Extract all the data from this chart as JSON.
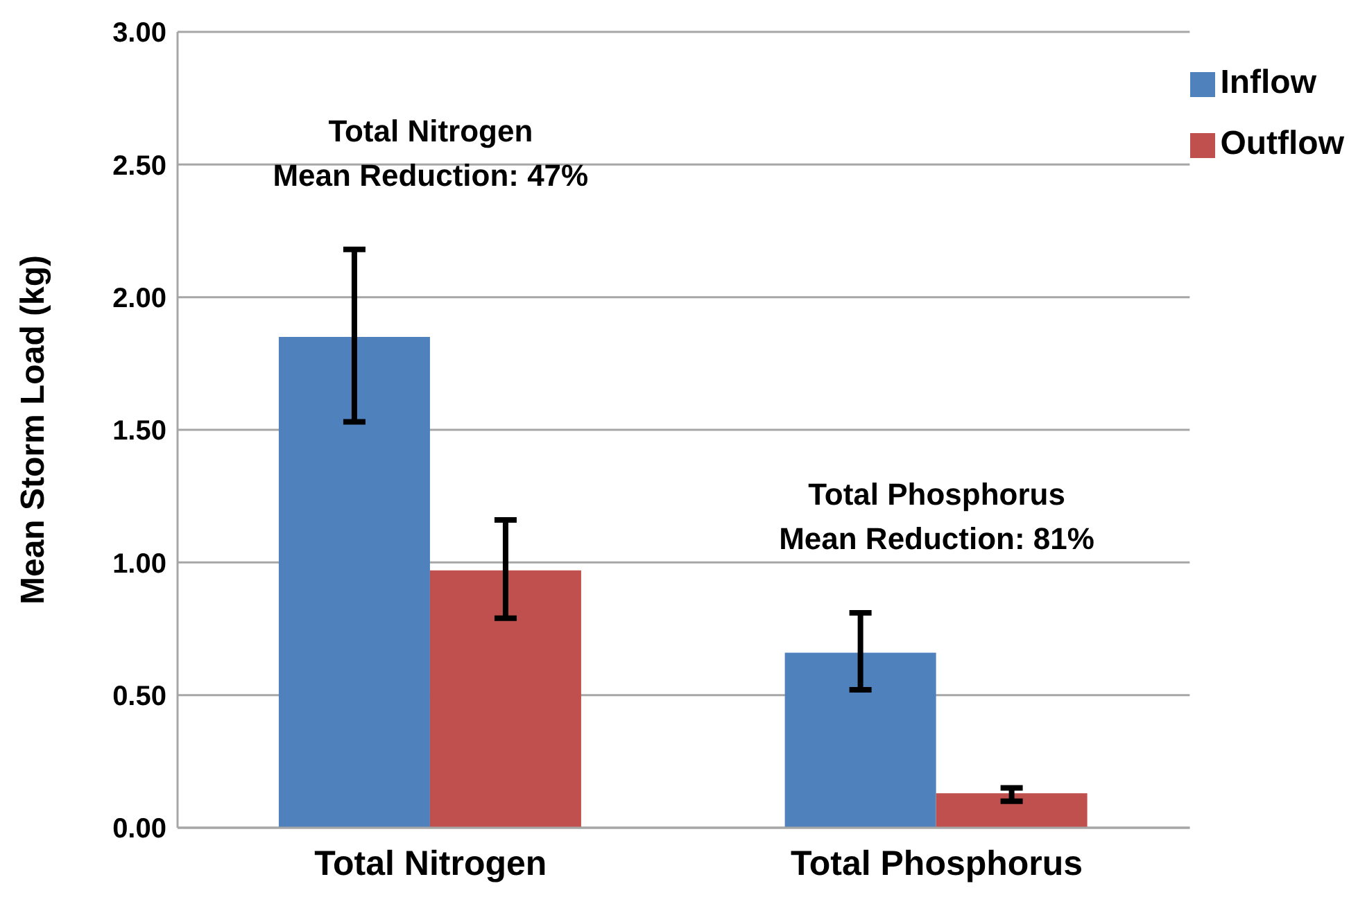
{
  "chart_data": {
    "type": "bar",
    "ylabel": "Mean Storm Load (kg)",
    "categories": [
      "Total Nitrogen",
      "Total Phosphorus"
    ],
    "series": [
      {
        "name": "Inflow",
        "color": "#4f81bd",
        "values": [
          1.85,
          0.66
        ],
        "errors": [
          [
            1.53,
            2.18
          ],
          [
            0.52,
            0.81
          ]
        ]
      },
      {
        "name": "Outflow",
        "color": "#c0504d",
        "values": [
          0.97,
          0.13
        ],
        "errors": [
          [
            0.79,
            1.16
          ],
          [
            0.1,
            0.15
          ]
        ]
      }
    ],
    "ylim": [
      0,
      3
    ],
    "yticks": [
      {
        "value": 0,
        "label": "0.00"
      },
      {
        "value": 0.5,
        "label": "0.50"
      },
      {
        "value": 1,
        "label": "1.00"
      },
      {
        "value": 1.5,
        "label": "1.50"
      },
      {
        "value": 2,
        "label": "2.00"
      },
      {
        "value": 2.5,
        "label": "2.50"
      },
      {
        "value": 3,
        "label": "3.00"
      }
    ],
    "grid": "y",
    "legend": "top right",
    "annotations": [
      "Total Nitrogen\nMean Reduction: 47%",
      "Total Phosphorus\nMean Reduction: 81%"
    ]
  }
}
